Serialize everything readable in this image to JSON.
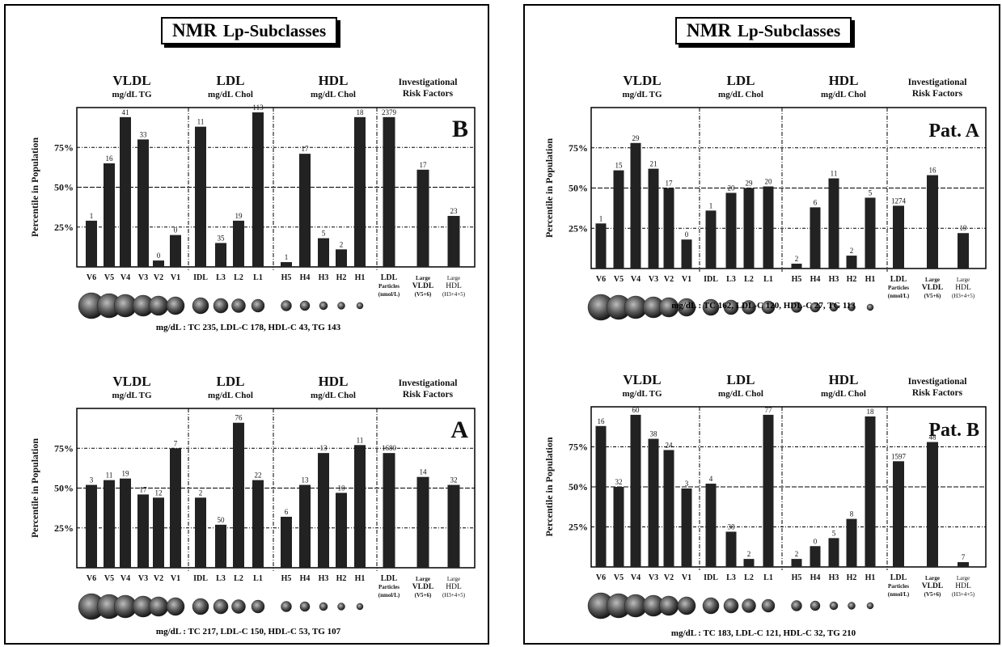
{
  "colors": {
    "bar": "#222222",
    "frame": "#000000",
    "background": "#ffffff"
  },
  "panels": [
    {
      "title": "NMR",
      "title_sub": "Lp-Subclasses",
      "summary": "mg/dL : TC  235, LDL-C  178, HDL-C  43, TG  143",
      "charts": [
        {
          "data": {
            "type": "bar",
            "label": "B",
            "ylabel": "Percentile in Population",
            "ylim": [
              0,
              100
            ],
            "yticks": [
              "25%",
              "50%",
              "75%"
            ],
            "groups": [
              {
                "header": "VLDL",
                "sub": "mg/dL TG"
              },
              {
                "header": "LDL",
                "sub": "mg/dL Chol"
              },
              {
                "header": "HDL",
                "sub": "mg/dL Chol"
              },
              {
                "header": "Investigational",
                "sub": "Risk Factors"
              }
            ],
            "categories": [
              "V6",
              "V5",
              "V4",
              "V3",
              "V2",
              "V1",
              "IDL",
              "L3",
              "L2",
              "L1",
              "H5",
              "H4",
              "H3",
              "H2",
              "H1",
              "LDL Particles (nmol/L)",
              "Large VLDL (V5+6)",
              "Large HDL (H3+4+5)"
            ],
            "percentiles": [
              29,
              65,
              94,
              80,
              4,
              20,
              88,
              15,
              29,
              97,
              3,
              71,
              18,
              11,
              94,
              94,
              61,
              32
            ],
            "value_labels": [
              "1",
              "16",
              "41",
              "33",
              "0",
              "0",
              "11",
              "35",
              "19",
              "113",
              "1",
              "17",
              "5",
              "2",
              "18",
              "2379",
              "17",
              "23"
            ]
          }
        },
        {
          "data": {
            "type": "bar",
            "label": "A",
            "ylabel": "Percentile in Population",
            "ylim": [
              0,
              100
            ],
            "yticks": [
              "25%",
              "50%",
              "75%"
            ],
            "groups": [
              {
                "header": "VLDL",
                "sub": "mg/dL TG"
              },
              {
                "header": "LDL",
                "sub": "mg/dL Chol"
              },
              {
                "header": "HDL",
                "sub": "mg/dL Chol"
              },
              {
                "header": "Investigational",
                "sub": "Risk Factors"
              }
            ],
            "categories": [
              "V6",
              "V5",
              "V4",
              "V3",
              "V2",
              "V1",
              "IDL",
              "L3",
              "L2",
              "L1",
              "H5",
              "H4",
              "H3",
              "H2",
              "H1",
              "LDL Particles (nmol/L)",
              "Large VLDL (V5+6)",
              "Large HDL (H3+4+5)"
            ],
            "percentiles": [
              52,
              55,
              56,
              46,
              44,
              75,
              44,
              27,
              91,
              55,
              32,
              52,
              72,
              47,
              77,
              72,
              57,
              52
            ],
            "value_labels": [
              "3",
              "11",
              "19",
              "17",
              "12",
              "7",
              "2",
              "50",
              "76",
              "22",
              "6",
              "13",
              "13",
              "10",
              "11",
              "1680",
              "14",
              "32"
            ]
          }
        }
      ],
      "summaries": [
        "mg/dL : TC  235, LDL-C  178, HDL-C  43, TG  143",
        "mg/dL : TC  217, LDL-C  150, HDL-C  53, TG  107"
      ]
    },
    {
      "title": "NMR",
      "title_sub": "Lp-Subclasses",
      "charts": [
        {
          "data": {
            "type": "bar",
            "label": "Pat. A",
            "ylabel": "Percentile in Population",
            "ylim": [
              0,
              100
            ],
            "yticks": [
              "25%",
              "50%",
              "75%"
            ],
            "groups": [
              {
                "header": "VLDL",
                "sub": "mg/dL TG"
              },
              {
                "header": "LDL",
                "sub": "mg/dL Chol"
              },
              {
                "header": "HDL",
                "sub": "mg/dL Chol"
              },
              {
                "header": "Investigational",
                "sub": "Risk Factors"
              }
            ],
            "categories": [
              "V6",
              "V5",
              "V4",
              "V3",
              "V2",
              "V1",
              "IDL",
              "L3",
              "L2",
              "L1",
              "H5",
              "H4",
              "H3",
              "H2",
              "H1",
              "LDL Particles (nmol/L)",
              "Large VLDL (V5+6)",
              "Large HDL (H3+4+5)"
            ],
            "percentiles": [
              28,
              61,
              78,
              62,
              50,
              18,
              36,
              47,
              50,
              51,
              3,
              38,
              56,
              8,
              44,
              39,
              58,
              22
            ],
            "value_labels": [
              "1",
              "15",
              "29",
              "21",
              "17",
              "0",
              "1",
              "20",
              "29",
              "20",
              "2",
              "6",
              "11",
              "2",
              "5",
              "1274",
              "16",
              "19"
            ]
          }
        },
        {
          "data": {
            "type": "bar",
            "label": "Pat. B",
            "ylabel": "Percentile in Population",
            "ylim": [
              0,
              100
            ],
            "yticks": [
              "25%",
              "50%",
              "75%"
            ],
            "groups": [
              {
                "header": "VLDL",
                "sub": "mg/dL TG"
              },
              {
                "header": "LDL",
                "sub": "mg/dL Chol"
              },
              {
                "header": "HDL",
                "sub": "mg/dL Chol"
              },
              {
                "header": "Investigational",
                "sub": "Risk Factors"
              }
            ],
            "categories": [
              "V6",
              "V5",
              "V4",
              "V3",
              "V2",
              "V1",
              "IDL",
              "L3",
              "L2",
              "L1",
              "H5",
              "H4",
              "H3",
              "H2",
              "H1",
              "LDL Particles (nmol/L)",
              "Large VLDL (V5+6)",
              "Large HDL (H3+4+5)"
            ],
            "percentiles": [
              88,
              50,
              95,
              80,
              73,
              49,
              52,
              22,
              5,
              95,
              5,
              13,
              18,
              30,
              94,
              66,
              78,
              3
            ],
            "value_labels": [
              "16",
              "32",
              "60",
              "38",
              "24",
              "3",
              "4",
              "38",
              "2",
              "77",
              "2",
              "0",
              "5",
              "8",
              "18",
              "1597",
              "48",
              "7"
            ]
          }
        }
      ],
      "summaries": [
        "mg/dL : TC  162, LDL-C  120, HDL-C  27, TG  113",
        "mg/dL : TC  183, LDL-C  121, HDL-C  32, TG  210"
      ]
    }
  ],
  "chart_data": [
    {
      "type": "bar",
      "title": "B",
      "ylabel": "Percentile in Population",
      "categories": [
        "V6",
        "V5",
        "V4",
        "V3",
        "V2",
        "V1",
        "IDL",
        "L3",
        "L2",
        "L1",
        "H5",
        "H4",
        "H3",
        "H2",
        "H1",
        "LDL Particles (nmol/L)",
        "Large VLDL (V5+6)",
        "Large HDL (H3+4+5)"
      ],
      "values": [
        29,
        65,
        94,
        80,
        4,
        20,
        88,
        15,
        29,
        97,
        3,
        71,
        18,
        11,
        94,
        94,
        61,
        32
      ],
      "ylim": [
        0,
        100
      ]
    },
    {
      "type": "bar",
      "title": "A",
      "ylabel": "Percentile in Population",
      "categories": [
        "V6",
        "V5",
        "V4",
        "V3",
        "V2",
        "V1",
        "IDL",
        "L3",
        "L2",
        "L1",
        "H5",
        "H4",
        "H3",
        "H2",
        "H1",
        "LDL Particles (nmol/L)",
        "Large VLDL (V5+6)",
        "Large HDL (H3+4+5)"
      ],
      "values": [
        52,
        55,
        56,
        46,
        44,
        75,
        44,
        27,
        91,
        55,
        32,
        52,
        72,
        47,
        77,
        72,
        57,
        52
      ],
      "ylim": [
        0,
        100
      ]
    },
    {
      "type": "bar",
      "title": "Pat. A",
      "ylabel": "Percentile in Population",
      "categories": [
        "V6",
        "V5",
        "V4",
        "V3",
        "V2",
        "V1",
        "IDL",
        "L3",
        "L2",
        "L1",
        "H5",
        "H4",
        "H3",
        "H2",
        "H1",
        "LDL Particles (nmol/L)",
        "Large VLDL (V5+6)",
        "Large HDL (H3+4+5)"
      ],
      "values": [
        28,
        61,
        78,
        62,
        50,
        18,
        36,
        47,
        50,
        51,
        3,
        38,
        56,
        8,
        44,
        39,
        58,
        22
      ],
      "ylim": [
        0,
        100
      ]
    },
    {
      "type": "bar",
      "title": "Pat. B",
      "ylabel": "Percentile in Population",
      "categories": [
        "V6",
        "V5",
        "V4",
        "V3",
        "V2",
        "V1",
        "IDL",
        "L3",
        "L2",
        "L1",
        "H5",
        "H4",
        "H3",
        "H2",
        "H1",
        "LDL Particles (nmol/L)",
        "Large VLDL (V5+6)",
        "Large HDL (H3+4+5)"
      ],
      "values": [
        88,
        50,
        95,
        80,
        73,
        49,
        52,
        22,
        5,
        95,
        5,
        13,
        18,
        30,
        94,
        66,
        78,
        3
      ],
      "ylim": [
        0,
        100
      ]
    }
  ]
}
